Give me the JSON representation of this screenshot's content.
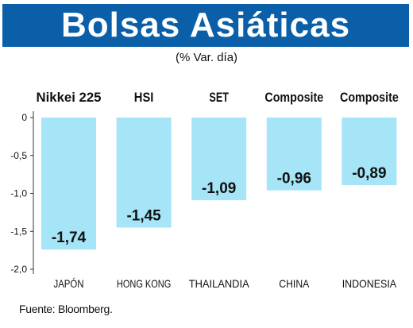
{
  "header": {
    "title": "Bolsas Asiáticas",
    "subtitle": "(% Var. día)"
  },
  "source": "Fuente: Bloomberg.",
  "colors": {
    "banner": "#0a5fa8",
    "bar": "#a6e4f7",
    "axis": "#333333",
    "text": "#111111"
  },
  "chart_data": {
    "type": "bar",
    "index_names": [
      "Nikkei 225",
      "HSI",
      "SET",
      "Composite",
      "Composite"
    ],
    "categories": [
      "JAPÓN",
      "HONG KONG",
      "THAILANDIA",
      "CHINA",
      "INDONESIA"
    ],
    "values": [
      -1.74,
      -1.45,
      -1.09,
      -0.96,
      -0.89
    ],
    "value_labels": [
      "-1,74",
      "-1,45",
      "-1,09",
      "-0,96",
      "-0,89"
    ],
    "y_ticks": [
      0,
      -0.5,
      -1.0,
      -1.5,
      -2.0
    ],
    "y_tick_labels": [
      "0",
      "-0,5",
      "-1,0",
      "-1,5",
      "-2,0"
    ],
    "ylim": [
      -2.0,
      0
    ],
    "grid": false,
    "title": "Bolsas Asiáticas",
    "subtitle": "(% Var. día)",
    "xlabel": "",
    "ylabel": ""
  }
}
